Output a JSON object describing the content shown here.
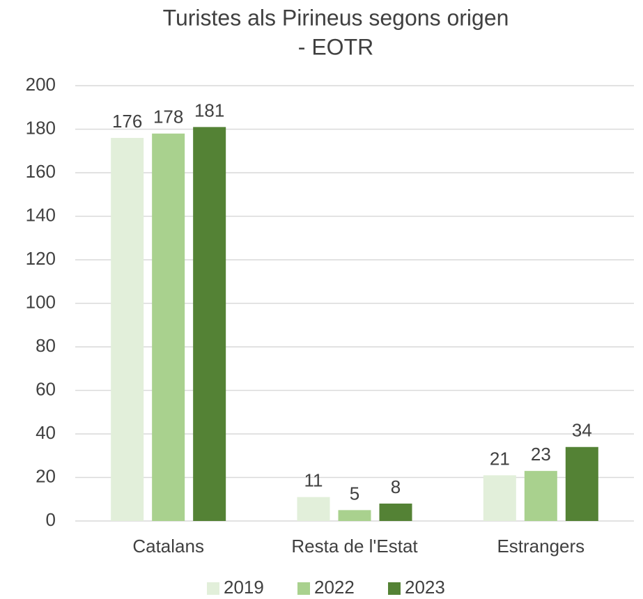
{
  "chart_data": {
    "type": "bar",
    "title": [
      "Turistes als Pirineus segons origen",
      "- EOTR"
    ],
    "categories": [
      "Catalans",
      "Resta de l'Estat",
      "Estrangers"
    ],
    "series": [
      {
        "name": "2019",
        "color": "#e2efda",
        "values": [
          176,
          11,
          21
        ]
      },
      {
        "name": "2022",
        "color": "#a9d18e",
        "values": [
          178,
          5,
          23
        ]
      },
      {
        "name": "2023",
        "color": "#548235",
        "values": [
          181,
          8,
          34
        ]
      }
    ],
    "ylim": [
      0,
      200
    ],
    "yticks": [
      0,
      20,
      40,
      60,
      80,
      100,
      120,
      140,
      160,
      180,
      200
    ],
    "grid": true,
    "legend": "bottom"
  }
}
